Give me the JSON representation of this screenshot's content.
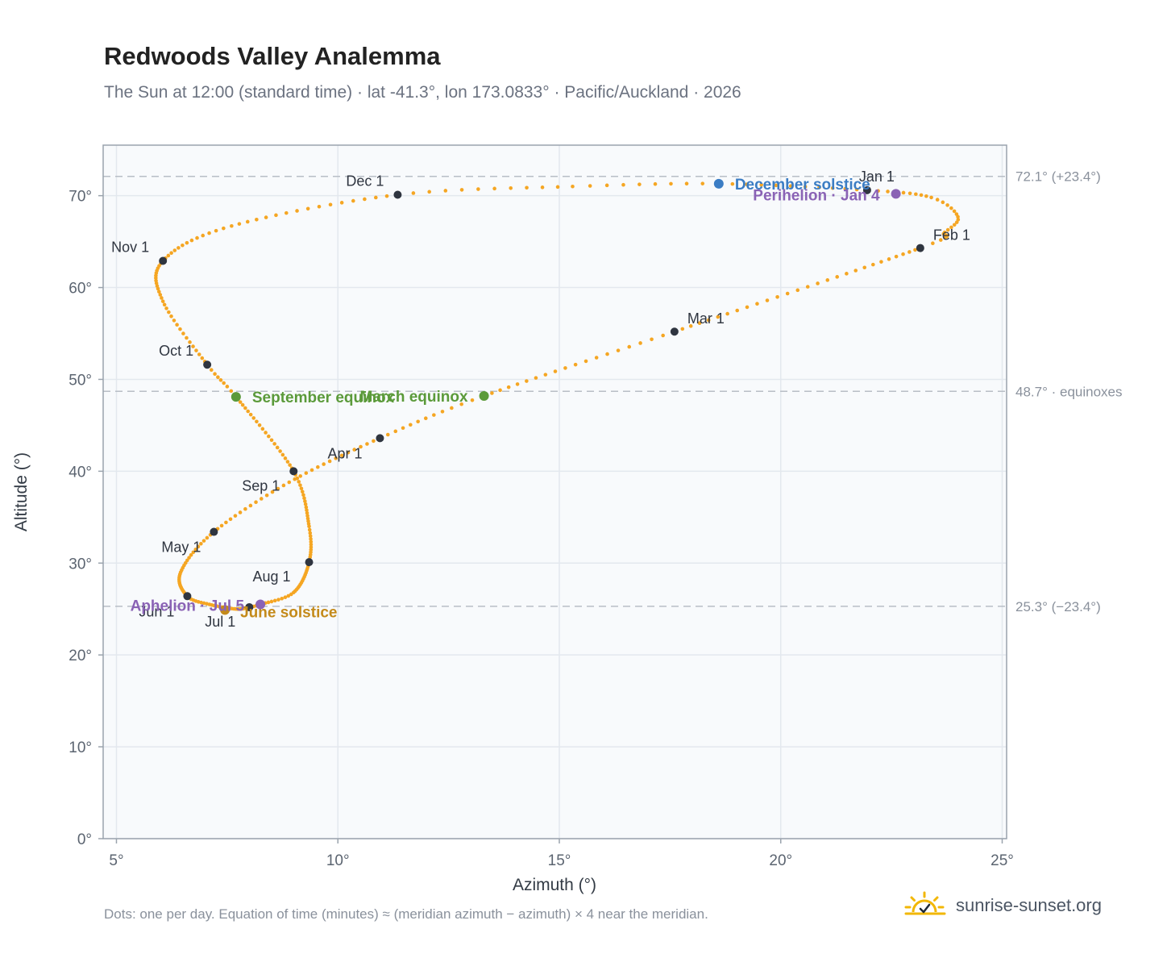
{
  "header": {
    "title": "Redwoods Valley Analemma",
    "subtitle": "The Sun at 12:00 (standard time) · lat -41.3°, lon 173.0833° · Pacific/Auckland · 2026"
  },
  "footer": {
    "note": "Dots: one per day. Equation of time (minutes) ≈ (meridian azimuth − azimuth) × 4 near the meridian.",
    "brand": "sunrise-sunset.org"
  },
  "colors": {
    "curve": "#f5a623",
    "month_marker": "#2f3540",
    "equinox": "#5b9a3a",
    "december_solstice": "#3b7dc4",
    "june_solstice": "#c48a1a",
    "apsis": "#8a63b5",
    "reference_line": "#b8bec6",
    "plot_bg": "#f8fafc",
    "frame": "#9aa3ad"
  },
  "chart_data": {
    "type": "scatter",
    "title": "Redwoods Valley Analemma",
    "xlabel": "Azimuth (°)",
    "ylabel": "Altitude (°)",
    "xlim": [
      4.7,
      25.1
    ],
    "ylim": [
      0,
      75.5
    ],
    "x_ticks": [
      5,
      10,
      15,
      20,
      25
    ],
    "x_tick_labels": [
      "5°",
      "10°",
      "15°",
      "20°",
      "25°"
    ],
    "y_ticks": [
      0,
      10,
      20,
      30,
      40,
      50,
      60,
      70
    ],
    "y_tick_labels": [
      "0°",
      "10°",
      "20°",
      "30°",
      "40°",
      "50°",
      "60°",
      "70°"
    ],
    "grid": true,
    "reference_lines": [
      {
        "y": 72.1,
        "label": "72.1° (+23.4°)"
      },
      {
        "y": 48.7,
        "label": "48.7° · equinoxes"
      },
      {
        "y": 25.3,
        "label": "25.3° (−23.4°)"
      }
    ],
    "path_anchors": [
      {
        "day": 0,
        "x": 21.95,
        "y": 70.6
      },
      {
        "day": 9,
        "x": 23.4,
        "y": 69.8
      },
      {
        "day": 16,
        "x": 24.0,
        "y": 67.7
      },
      {
        "day": 22,
        "x": 23.7,
        "y": 66.0
      },
      {
        "day": 31,
        "x": 23.15,
        "y": 64.3
      },
      {
        "day": 59,
        "x": 17.6,
        "y": 55.2
      },
      {
        "day": 78,
        "x": 13.3,
        "y": 48.2
      },
      {
        "day": 90,
        "x": 10.95,
        "y": 43.6
      },
      {
        "day": 105,
        "x": 8.9,
        "y": 38.8
      },
      {
        "day": 120,
        "x": 7.2,
        "y": 33.4
      },
      {
        "day": 135,
        "x": 6.45,
        "y": 29.0
      },
      {
        "day": 151,
        "x": 6.6,
        "y": 26.4
      },
      {
        "day": 160,
        "x": 7.1,
        "y": 25.5
      },
      {
        "day": 171,
        "x": 7.7,
        "y": 25.0
      },
      {
        "day": 181,
        "x": 8.0,
        "y": 25.2
      },
      {
        "day": 185,
        "x": 8.25,
        "y": 25.5
      },
      {
        "day": 196,
        "x": 9.0,
        "y": 26.8
      },
      {
        "day": 212,
        "x": 9.35,
        "y": 30.1
      },
      {
        "day": 225,
        "x": 9.35,
        "y": 34.0
      },
      {
        "day": 243,
        "x": 9.0,
        "y": 40.0
      },
      {
        "day": 265,
        "x": 7.7,
        "y": 48.1
      },
      {
        "day": 273,
        "x": 7.05,
        "y": 51.6
      },
      {
        "day": 289,
        "x": 6.05,
        "y": 58.5
      },
      {
        "day": 304,
        "x": 6.05,
        "y": 62.9
      },
      {
        "day": 318,
        "x": 7.6,
        "y": 66.7
      },
      {
        "day": 334,
        "x": 11.35,
        "y": 70.1
      },
      {
        "day": 345,
        "x": 15.3,
        "y": 71.0
      },
      {
        "day": 354,
        "x": 18.6,
        "y": 71.3
      },
      {
        "day": 365,
        "x": 21.95,
        "y": 70.6
      }
    ],
    "month_markers": [
      {
        "label": "Jan 1",
        "x": 21.95,
        "y": 70.6,
        "pos": "above"
      },
      {
        "label": "Feb 1",
        "x": 23.15,
        "y": 64.3,
        "pos": "above-right"
      },
      {
        "label": "Mar 1",
        "x": 17.6,
        "y": 55.2,
        "pos": "above-right"
      },
      {
        "label": "Apr 1",
        "x": 10.95,
        "y": 43.6,
        "pos": "below-left"
      },
      {
        "label": "May 1",
        "x": 7.2,
        "y": 33.4,
        "pos": "below-left"
      },
      {
        "label": "Jun 1",
        "x": 6.6,
        "y": 26.4,
        "pos": "below-left"
      },
      {
        "label": "Jul 1",
        "x": 8.0,
        "y": 25.2,
        "pos": "below-left"
      },
      {
        "label": "Aug 1",
        "x": 9.35,
        "y": 30.1,
        "pos": "below-left"
      },
      {
        "label": "Sep 1",
        "x": 9.0,
        "y": 40.0,
        "pos": "below-left"
      },
      {
        "label": "Oct 1",
        "x": 7.05,
        "y": 51.6,
        "pos": "above-left"
      },
      {
        "label": "Nov 1",
        "x": 6.05,
        "y": 62.9,
        "pos": "above-left"
      },
      {
        "label": "Dec 1",
        "x": 11.35,
        "y": 70.1,
        "pos": "above-left"
      }
    ],
    "events": [
      {
        "label": "December solstice",
        "x": 18.6,
        "y": 71.3,
        "color": "#3b7dc4",
        "pos": "right"
      },
      {
        "label": "Perihelion · Jan 4",
        "x": 22.6,
        "y": 70.2,
        "color": "#8a63b5",
        "pos": "below-left"
      },
      {
        "label": "March equinox",
        "x": 13.3,
        "y": 48.2,
        "color": "#5b9a3a",
        "pos": "left"
      },
      {
        "label": "September equinox",
        "x": 7.7,
        "y": 48.1,
        "color": "#5b9a3a",
        "pos": "right"
      },
      {
        "label": "June solstice",
        "x": 7.45,
        "y": 24.9,
        "color": "#c48a1a",
        "pos": "right"
      },
      {
        "label": "Aphelion · Jul 5",
        "x": 8.25,
        "y": 25.5,
        "color": "#8a63b5",
        "pos": "left"
      }
    ]
  }
}
